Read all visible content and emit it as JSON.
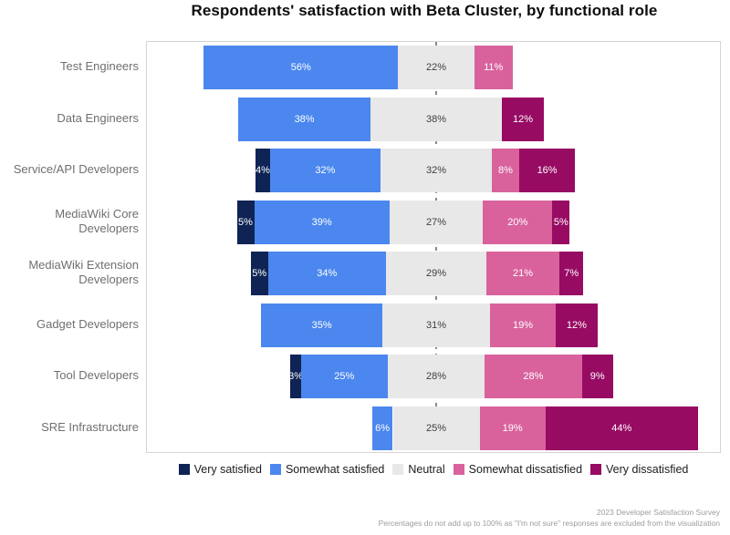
{
  "chart_data": {
    "type": "bar",
    "variant": "diverging-stacked-horizontal",
    "title": "Respondents' satisfaction with Beta Cluster, by functional role",
    "unit": "%",
    "categories": [
      "Test Engineers",
      "Data Engineers",
      "Service/API Developers",
      "MediaWiki Core Developers",
      "MediaWiki Extension Developers",
      "Gadget Developers",
      "Tool Developers",
      "SRE Infrastructure"
    ],
    "series": [
      {
        "name": "Very satisfied",
        "color": "#0f2455",
        "label_color": "light",
        "values": [
          0,
          0,
          4,
          5,
          5,
          0,
          3,
          0
        ]
      },
      {
        "name": "Somewhat satisfied",
        "color": "#4b87ee",
        "label_color": "light",
        "values": [
          56,
          38,
          32,
          39,
          34,
          35,
          25,
          6
        ]
      },
      {
        "name": "Neutral",
        "color": "#e8e8e8",
        "label_color": "dark",
        "values": [
          22,
          38,
          32,
          27,
          29,
          31,
          28,
          25
        ]
      },
      {
        "name": "Somewhat dissatisfied",
        "color": "#d9629d",
        "label_color": "light",
        "values": [
          11,
          0,
          8,
          20,
          21,
          19,
          28,
          19
        ]
      },
      {
        "name": "Very dissatisfied",
        "color": "#970b63",
        "label_color": "light",
        "values": [
          0,
          12,
          16,
          5,
          7,
          12,
          9,
          44
        ]
      }
    ],
    "legend_position": "bottom",
    "baseline": "Neutral segment centered on dashed vertical axis; satisfied to the left, dissatisfied to the right",
    "grid": false,
    "axis_line_style": "dashed"
  },
  "notes": {
    "line1": "2023 Developer Satisfaction Survey",
    "line2": "Percentages do not add up to 100% as \"I'm not sure\" responses are excluded from the visualization"
  }
}
